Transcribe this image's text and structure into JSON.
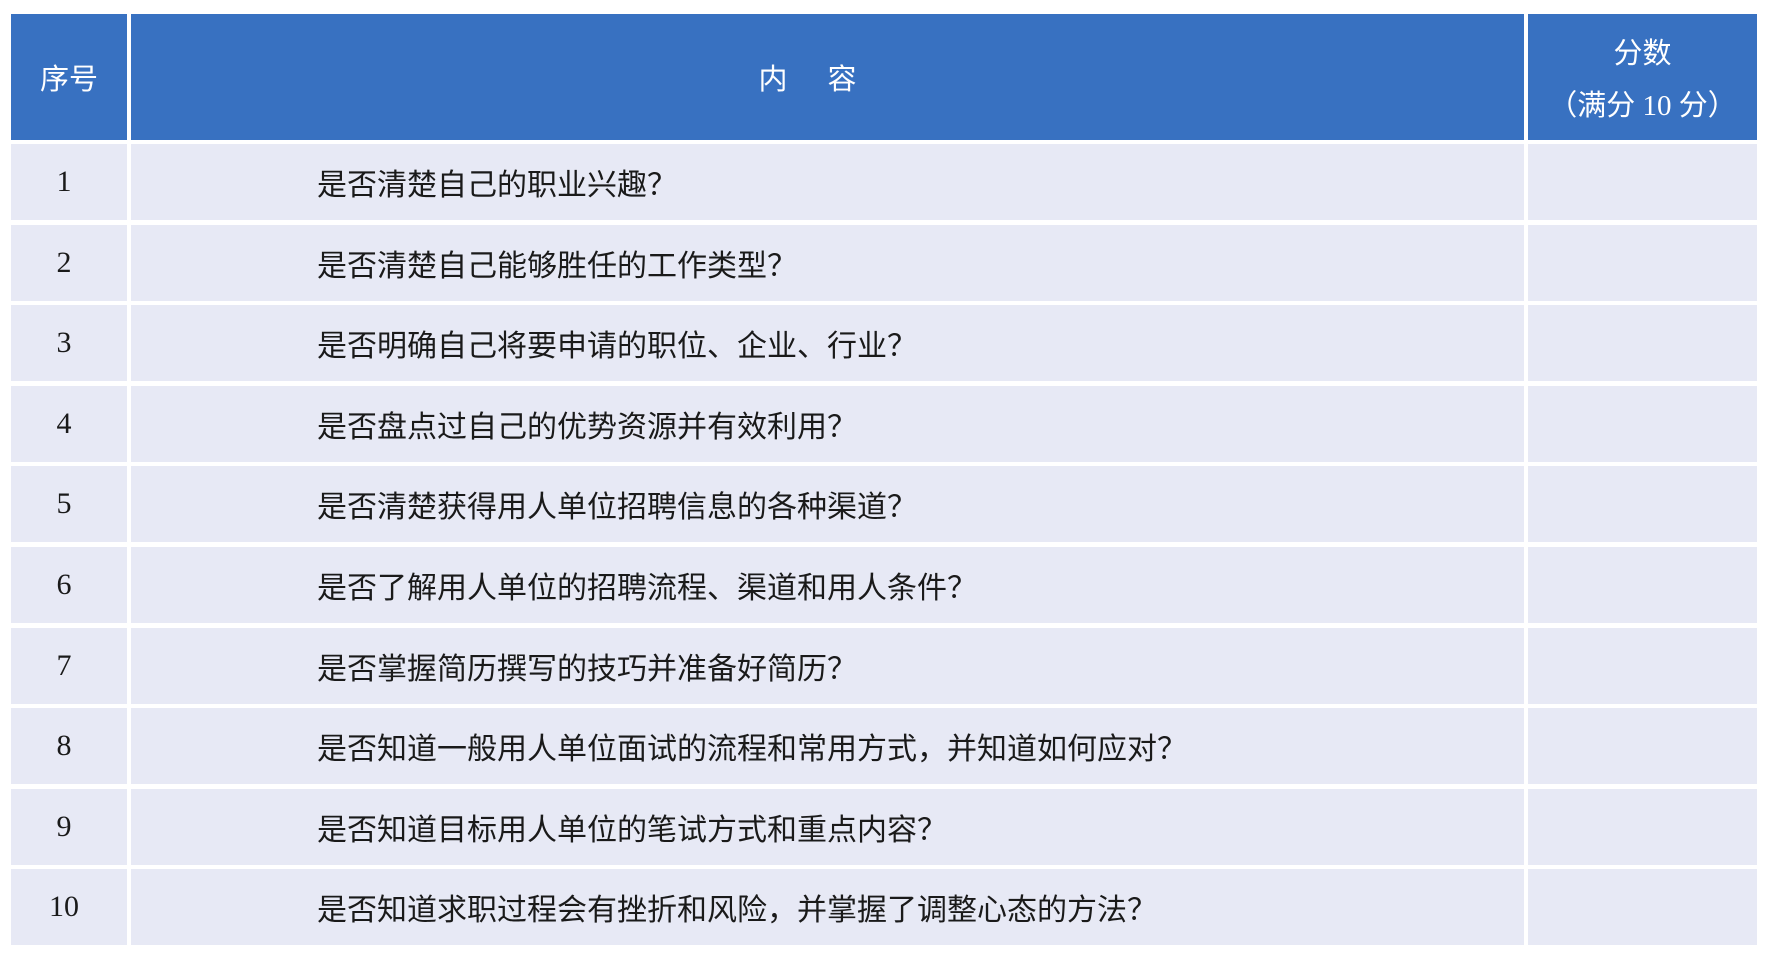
{
  "header": {
    "index": "序号",
    "content": "内容",
    "score": "分数",
    "score_note": "（满分 10 分）"
  },
  "colors": {
    "header_bg": "#3871c1",
    "row_bg": "#e7e9f5"
  },
  "rows": [
    {
      "index": "1",
      "content": "是否清楚自己的职业兴趣？",
      "score": ""
    },
    {
      "index": "2",
      "content": "是否清楚自己能够胜任的工作类型？",
      "score": ""
    },
    {
      "index": "3",
      "content": "是否明确自己将要申请的职位、企业、行业？",
      "score": ""
    },
    {
      "index": "4",
      "content": "是否盘点过自己的优势资源并有效利用？",
      "score": ""
    },
    {
      "index": "5",
      "content": "是否清楚获得用人单位招聘信息的各种渠道？",
      "score": ""
    },
    {
      "index": "6",
      "content": "是否了解用人单位的招聘流程、渠道和用人条件？",
      "score": ""
    },
    {
      "index": "7",
      "content": "是否掌握简历撰写的技巧并准备好简历？",
      "score": ""
    },
    {
      "index": "8",
      "content": "是否知道一般用人单位面试的流程和常用方式，并知道如何应对？",
      "score": ""
    },
    {
      "index": "9",
      "content": "是否知道目标用人单位的笔试方式和重点内容？",
      "score": ""
    },
    {
      "index": "10",
      "content": "是否知道求职过程会有挫折和风险，并掌握了调整心态的方法？",
      "score": ""
    }
  ]
}
